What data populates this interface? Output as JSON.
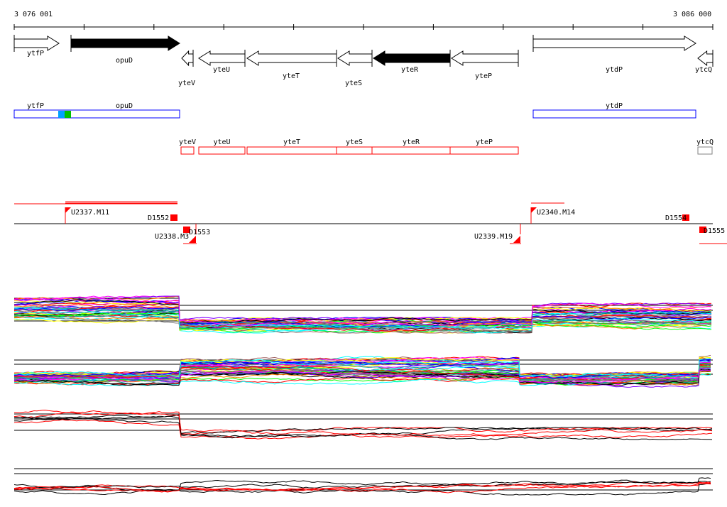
{
  "ruler": {
    "start_label": "3 076 001",
    "end_label": "3 086 000"
  },
  "genes": [
    {
      "name": "ytfP",
      "strand": "+",
      "filled": false
    },
    {
      "name": "opuD",
      "strand": "+",
      "filled": true
    },
    {
      "name": "yteV",
      "strand": "-",
      "filled": false
    },
    {
      "name": "yteU",
      "strand": "-",
      "filled": false
    },
    {
      "name": "yteT",
      "strand": "-",
      "filled": false
    },
    {
      "name": "yteS",
      "strand": "-",
      "filled": false
    },
    {
      "name": "yteR",
      "strand": "-",
      "filled": true
    },
    {
      "name": "yteP",
      "strand": "-",
      "filled": false
    },
    {
      "name": "ytdP",
      "strand": "+",
      "filled": false
    },
    {
      "name": "ytcQ",
      "strand": "-",
      "filled": false
    }
  ],
  "operons_forward": [
    {
      "labels": [
        "ytfP",
        "opuD"
      ],
      "color": "#0000ff"
    },
    {
      "labels": [
        "ytdP"
      ],
      "color": "#0000ff"
    }
  ],
  "operons_reverse": [
    {
      "label": "yteV",
      "color": "#ff0000"
    },
    {
      "label": "yteU",
      "color": "#ff0000"
    },
    {
      "label": "yteT",
      "color": "#ff0000"
    },
    {
      "label": "yteS",
      "color": "#ff0000"
    },
    {
      "label": "yteR",
      "color": "#ff0000"
    },
    {
      "label": "yteP",
      "color": "#ff0000"
    },
    {
      "label": "ytcQ",
      "color": "#808080"
    }
  ],
  "features": {
    "upshifts": [
      "U2337.M11",
      "U2338.M3",
      "U2339.M19",
      "U2340.M14"
    ],
    "downshifts": [
      "D1552",
      "D1553",
      "D1554",
      "D1555"
    ]
  },
  "colors": {
    "feature": "#ff0000",
    "forward_operon": "#0000ff",
    "reverse_operon": "#ff0000",
    "track_palette": [
      "#ff0000",
      "#0000ff",
      "#00ffff",
      "#ff00ff",
      "#00ff00",
      "#ffff00",
      "#808080",
      "#ff8000",
      "#8000ff",
      "#a06060",
      "#000000",
      "#00a0a0"
    ]
  }
}
